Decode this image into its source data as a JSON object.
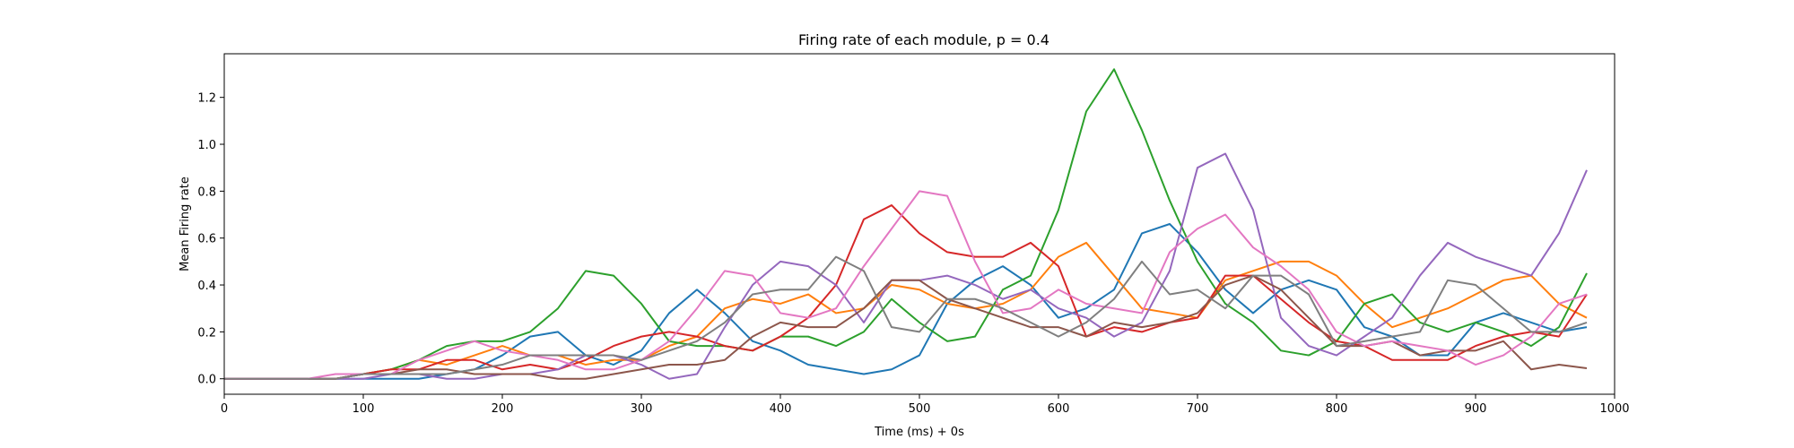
{
  "chart_data": {
    "type": "line",
    "title": "Firing rate of each module, p = 0.4",
    "xlabel": "Time (ms) + 0s",
    "ylabel": "Mean Firing rate",
    "xlim": [
      0,
      1000
    ],
    "ylim": [
      -0.066,
      1.386
    ],
    "grid": false,
    "x": [
      0,
      20,
      40,
      60,
      80,
      100,
      120,
      140,
      160,
      180,
      200,
      220,
      240,
      260,
      280,
      300,
      320,
      340,
      360,
      380,
      400,
      420,
      440,
      460,
      480,
      500,
      520,
      540,
      560,
      580,
      600,
      620,
      640,
      660,
      680,
      700,
      720,
      740,
      760,
      780,
      800,
      820,
      840,
      860,
      880,
      900,
      920,
      940,
      960,
      980
    ],
    "xticks": [
      0,
      100,
      200,
      300,
      400,
      500,
      600,
      700,
      800,
      900,
      1000
    ],
    "xtick_labels": [
      "0",
      "100",
      "200",
      "300",
      "400",
      "500",
      "600",
      "700",
      "800",
      "900",
      "1000"
    ],
    "yticks": [
      0.0,
      0.2,
      0.4,
      0.6,
      0.8,
      1.0,
      1.2
    ],
    "ytick_labels": [
      "0.0",
      "0.2",
      "0.4",
      "0.6",
      "0.8",
      "1.0",
      "1.2"
    ],
    "series": [
      {
        "color": "#1f77b4",
        "values": [
          0,
          0,
          0,
          0,
          0,
          0,
          0,
          0,
          0.02,
          0.04,
          0.1,
          0.18,
          0.2,
          0.1,
          0.06,
          0.12,
          0.28,
          0.38,
          0.28,
          0.16,
          0.12,
          0.06,
          0.04,
          0.02,
          0.04,
          0.1,
          0.32,
          0.42,
          0.48,
          0.4,
          0.26,
          0.3,
          0.38,
          0.62,
          0.66,
          0.54,
          0.38,
          0.28,
          0.38,
          0.42,
          0.38,
          0.22,
          0.18,
          0.1,
          0.1,
          0.24,
          0.28,
          0.24,
          0.2,
          0.22
        ]
      },
      {
        "color": "#ff7f0e",
        "values": [
          0,
          0,
          0,
          0,
          0,
          0.02,
          0.04,
          0.08,
          0.06,
          0.1,
          0.14,
          0.1,
          0.1,
          0.06,
          0.08,
          0.08,
          0.14,
          0.18,
          0.3,
          0.34,
          0.32,
          0.36,
          0.28,
          0.3,
          0.4,
          0.38,
          0.32,
          0.3,
          0.32,
          0.38,
          0.52,
          0.58,
          0.44,
          0.3,
          0.28,
          0.26,
          0.42,
          0.46,
          0.5,
          0.5,
          0.44,
          0.32,
          0.22,
          0.26,
          0.3,
          0.36,
          0.42,
          0.44,
          0.32,
          0.26
        ]
      },
      {
        "color": "#2ca02c",
        "values": [
          0,
          0,
          0,
          0,
          0,
          0.02,
          0.04,
          0.08,
          0.14,
          0.16,
          0.16,
          0.2,
          0.3,
          0.46,
          0.44,
          0.32,
          0.16,
          0.14,
          0.14,
          0.12,
          0.18,
          0.18,
          0.14,
          0.2,
          0.34,
          0.24,
          0.16,
          0.18,
          0.38,
          0.44,
          0.72,
          1.14,
          1.32,
          1.06,
          0.76,
          0.5,
          0.32,
          0.24,
          0.12,
          0.1,
          0.16,
          0.32,
          0.36,
          0.24,
          0.2,
          0.24,
          0.2,
          0.14,
          0.22,
          0.45
        ]
      },
      {
        "color": "#d62728",
        "values": [
          0,
          0,
          0,
          0,
          0,
          0.02,
          0.04,
          0.04,
          0.08,
          0.08,
          0.04,
          0.06,
          0.04,
          0.08,
          0.14,
          0.18,
          0.2,
          0.18,
          0.14,
          0.12,
          0.18,
          0.26,
          0.4,
          0.68,
          0.74,
          0.62,
          0.54,
          0.52,
          0.52,
          0.58,
          0.48,
          0.18,
          0.22,
          0.2,
          0.24,
          0.26,
          0.44,
          0.44,
          0.34,
          0.24,
          0.16,
          0.14,
          0.08,
          0.08,
          0.08,
          0.14,
          0.18,
          0.2,
          0.18,
          0.36
        ]
      },
      {
        "color": "#9467bd",
        "values": [
          0,
          0,
          0,
          0,
          0,
          0,
          0.02,
          0.02,
          0,
          0,
          0.02,
          0.02,
          0.04,
          0.1,
          0.1,
          0.06,
          0,
          0.02,
          0.22,
          0.4,
          0.5,
          0.48,
          0.4,
          0.24,
          0.42,
          0.42,
          0.44,
          0.4,
          0.34,
          0.38,
          0.3,
          0.26,
          0.18,
          0.24,
          0.46,
          0.9,
          0.96,
          0.72,
          0.26,
          0.14,
          0.1,
          0.18,
          0.26,
          0.44,
          0.58,
          0.52,
          0.48,
          0.44,
          0.62,
          0.89
        ]
      },
      {
        "color": "#8c564b",
        "values": [
          0,
          0,
          0,
          0,
          0,
          0.02,
          0.02,
          0.04,
          0.04,
          0.02,
          0.02,
          0.02,
          0.0,
          0.0,
          0.02,
          0.04,
          0.06,
          0.06,
          0.08,
          0.18,
          0.24,
          0.22,
          0.22,
          0.3,
          0.42,
          0.42,
          0.34,
          0.3,
          0.26,
          0.22,
          0.22,
          0.18,
          0.24,
          0.22,
          0.24,
          0.28,
          0.4,
          0.44,
          0.38,
          0.26,
          0.14,
          0.14,
          0.16,
          0.1,
          0.12,
          0.12,
          0.16,
          0.04,
          0.06,
          0.045
        ]
      },
      {
        "color": "#e377c2",
        "values": [
          0,
          0,
          0,
          0,
          0.02,
          0.02,
          0.02,
          0.08,
          0.12,
          0.16,
          0.12,
          0.1,
          0.08,
          0.04,
          0.04,
          0.08,
          0.16,
          0.3,
          0.46,
          0.44,
          0.28,
          0.26,
          0.3,
          0.48,
          0.64,
          0.8,
          0.78,
          0.5,
          0.28,
          0.3,
          0.38,
          0.32,
          0.3,
          0.28,
          0.54,
          0.64,
          0.7,
          0.56,
          0.48,
          0.38,
          0.2,
          0.14,
          0.16,
          0.14,
          0.12,
          0.06,
          0.1,
          0.18,
          0.32,
          0.36
        ]
      },
      {
        "color": "#7f7f7f",
        "values": [
          0,
          0,
          0,
          0,
          0,
          0.02,
          0.02,
          0.02,
          0.02,
          0.04,
          0.06,
          0.1,
          0.1,
          0.1,
          0.1,
          0.08,
          0.12,
          0.16,
          0.24,
          0.36,
          0.38,
          0.38,
          0.52,
          0.46,
          0.22,
          0.2,
          0.34,
          0.34,
          0.3,
          0.24,
          0.18,
          0.24,
          0.34,
          0.5,
          0.36,
          0.38,
          0.3,
          0.44,
          0.44,
          0.36,
          0.14,
          0.16,
          0.18,
          0.2,
          0.42,
          0.4,
          0.3,
          0.2,
          0.2,
          0.24
        ]
      }
    ]
  }
}
